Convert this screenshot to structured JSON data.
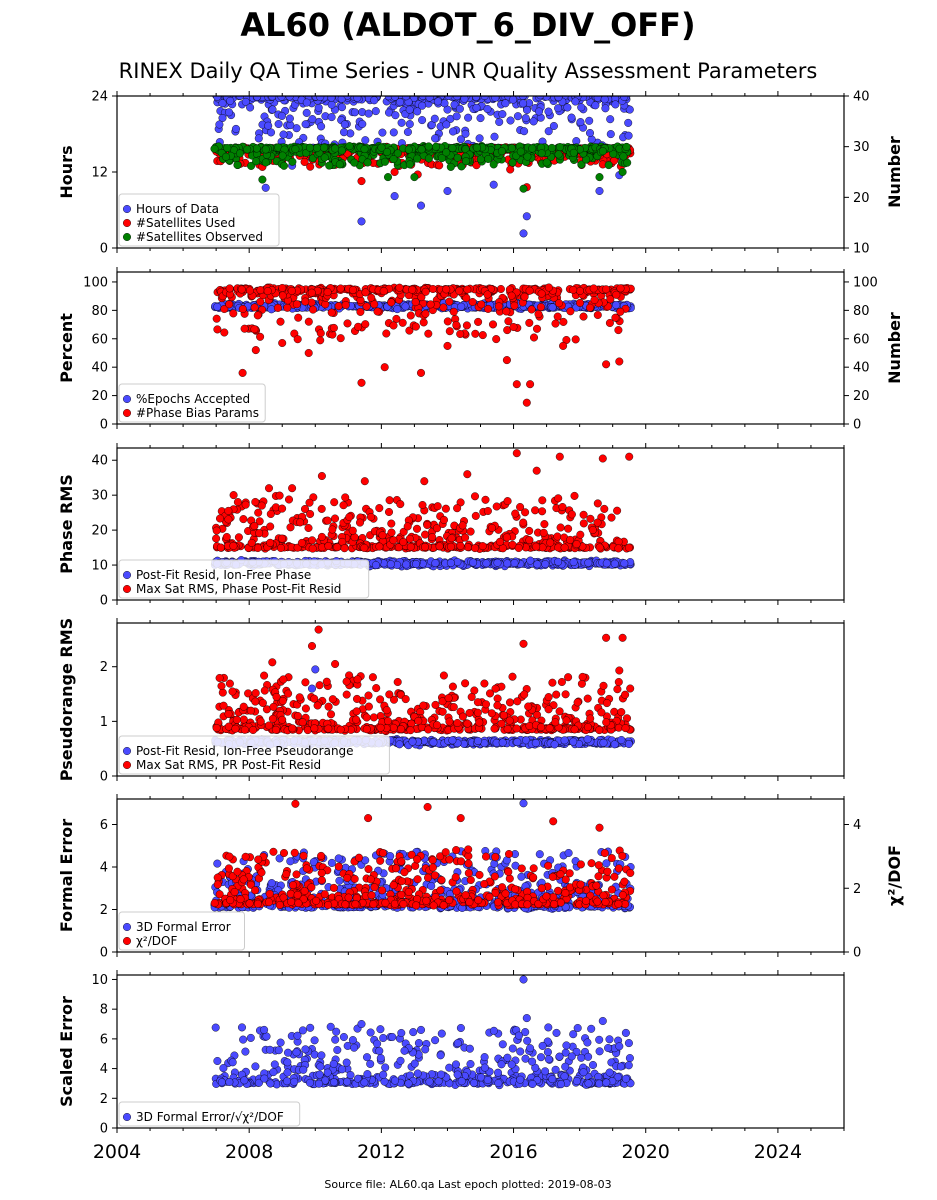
{
  "title": "AL60 (ALDOT_6_DIV_OFF)",
  "subtitle": "RINEX Daily QA Time Series - UNR Quality Assessment Parameters",
  "footer": "Source file: AL60.qa Last epoch plotted: 2019-08-03",
  "colors": {
    "blue": "#4a4aff",
    "red": "#ff0000",
    "green": "#008000"
  },
  "chart_data": [
    {
      "type": "scatter",
      "ylabel": "Hours",
      "ylabel_right": "Number",
      "xlim": [
        2004,
        2026
      ],
      "ylim": [
        0,
        24
      ],
      "ylim_right": [
        10,
        40
      ],
      "yticks": [
        "0",
        "12",
        "24"
      ],
      "yticks_right": [
        "10",
        "20",
        "30",
        "40"
      ],
      "legend_position": "lower-left",
      "series": [
        {
          "name": "Hours of Data",
          "color": "#4a4aff",
          "axis": "left",
          "typical": 23.9,
          "lowest": 2.3,
          "outliers": [
            [
              2007.1,
              19.5
            ],
            [
              2007.6,
              18.8
            ],
            [
              2008.5,
              9.5
            ],
            [
              2009.3,
              13.0
            ],
            [
              2010.0,
              15.0
            ],
            [
              2011.4,
              4.2
            ],
            [
              2012.4,
              8.2
            ],
            [
              2013.2,
              6.7
            ],
            [
              2014.0,
              9.0
            ],
            [
              2015.4,
              10.0
            ],
            [
              2016.3,
              2.3
            ],
            [
              2016.4,
              5.0
            ],
            [
              2017.2,
              14.0
            ],
            [
              2018.6,
              9.0
            ],
            [
              2019.2,
              11.5
            ]
          ]
        },
        {
          "name": "#Satellites Used",
          "color": "#ff0000",
          "axis": "right",
          "typical": 29.6,
          "lowest": 22.0,
          "outliers": [
            [
              2008.4,
              26.0
            ],
            [
              2011.4,
              23.2
            ],
            [
              2012.4,
              25.0
            ],
            [
              2013.1,
              24.5
            ],
            [
              2015.9,
              25.5
            ],
            [
              2016.4,
              22.0
            ],
            [
              2018.7,
              26.5
            ]
          ]
        },
        {
          "name": "#Satellites Observed",
          "color": "#008000",
          "axis": "right",
          "typical": 29.8,
          "lowest": 21.7,
          "outliers": [
            [
              2007.3,
              28.0
            ],
            [
              2008.4,
              23.5
            ],
            [
              2012.2,
              24.0
            ],
            [
              2013.0,
              24.0
            ],
            [
              2014.1,
              26.0
            ],
            [
              2015.4,
              26.5
            ],
            [
              2016.3,
              21.7
            ],
            [
              2018.6,
              24.0
            ],
            [
              2019.3,
              25.0
            ]
          ]
        }
      ]
    },
    {
      "type": "scatter",
      "ylabel": "Percent",
      "ylabel_right": "Number",
      "xlim": [
        2004,
        2026
      ],
      "ylim": [
        0,
        107
      ],
      "ylim_right": [
        0,
        107
      ],
      "yticks": [
        "0",
        "20",
        "40",
        "60",
        "80",
        "100"
      ],
      "yticks_right": [
        "0",
        "20",
        "40",
        "60",
        "80",
        "100"
      ],
      "legend_position": "lower-left",
      "series": [
        {
          "name": "%Epochs Accepted",
          "color": "#4a4aff",
          "axis": "left",
          "typical": 83,
          "lowest": 80,
          "outliers": []
        },
        {
          "name": "#Phase Bias Params",
          "color": "#ff0000",
          "axis": "right",
          "typical": 95,
          "lowest": 15,
          "outliers": [
            [
              2007.8,
              36
            ],
            [
              2008.2,
              52
            ],
            [
              2009.0,
              57
            ],
            [
              2009.8,
              50
            ],
            [
              2011.4,
              29
            ],
            [
              2012.1,
              40
            ],
            [
              2013.2,
              36
            ],
            [
              2014.0,
              55
            ],
            [
              2015.8,
              45
            ],
            [
              2016.1,
              28
            ],
            [
              2016.4,
              15
            ],
            [
              2016.5,
              28
            ],
            [
              2017.5,
              55
            ],
            [
              2018.8,
              42
            ],
            [
              2019.2,
              44
            ]
          ]
        }
      ]
    },
    {
      "type": "scatter",
      "ylabel": "Phase RMS",
      "xlim": [
        2004,
        2026
      ],
      "ylim": [
        0,
        43.5
      ],
      "yticks": [
        "0",
        "10",
        "20",
        "30",
        "40"
      ],
      "legend_position": "lower-left",
      "series": [
        {
          "name": "Post-Fit Resid, Ion-Free Phase",
          "color": "#4a4aff",
          "axis": "left",
          "typical": 10.5,
          "lowest": 9.5,
          "outliers": []
        },
        {
          "name": "Max Sat RMS, Phase Post-Fit Resid",
          "color": "#ff0000",
          "axis": "left",
          "typical": 15,
          "highest": 42,
          "outliers": [
            [
              2008.6,
              32
            ],
            [
              2009.3,
              32
            ],
            [
              2010.2,
              35.5
            ],
            [
              2011.5,
              34
            ],
            [
              2013.3,
              34
            ],
            [
              2014.6,
              36
            ],
            [
              2016.1,
              42
            ],
            [
              2016.7,
              37
            ],
            [
              2017.4,
              41
            ],
            [
              2018.7,
              40.5
            ],
            [
              2019.5,
              41
            ]
          ]
        }
      ]
    },
    {
      "type": "scatter",
      "ylabel": "Pseudorange RMS",
      "xlim": [
        2004,
        2026
      ],
      "ylim": [
        0,
        2.8
      ],
      "yticks": [
        "0",
        "1",
        "2"
      ],
      "legend_position": "lower-left",
      "series": [
        {
          "name": "Post-Fit Resid, Ion-Free Pseudorange",
          "color": "#4a4aff",
          "axis": "left",
          "typical": 0.62,
          "lowest": 0.35,
          "outliers": [
            [
              2009.9,
              1.6
            ],
            [
              2010.0,
              1.95
            ]
          ]
        },
        {
          "name": "Max Sat RMS, PR Post-Fit Resid",
          "color": "#ff0000",
          "axis": "left",
          "typical": 0.85,
          "highest": 2.68,
          "outliers": [
            [
              2008.7,
              2.08
            ],
            [
              2009.9,
              2.38
            ],
            [
              2010.1,
              2.68
            ],
            [
              2010.6,
              2.05
            ],
            [
              2016.3,
              2.42
            ],
            [
              2018.8,
              2.53
            ],
            [
              2019.3,
              2.53
            ],
            [
              2019.2,
              1.93
            ]
          ]
        }
      ]
    },
    {
      "type": "scatter",
      "ylabel": "Formal Error",
      "ylabel_right": "χ²/DOF",
      "xlim": [
        2004,
        2026
      ],
      "ylim": [
        0,
        7.2
      ],
      "ylim_right": [
        0,
        4.8
      ],
      "yticks": [
        "0",
        "2",
        "4",
        "6"
      ],
      "yticks_right": [
        "0",
        "2",
        "4"
      ],
      "legend_position": "lower-left",
      "series": [
        {
          "name": "3D Formal Error",
          "color": "#4a4aff",
          "axis": "left",
          "typical": 2.1,
          "highest": 7.0,
          "outliers": [
            [
              2016.3,
              7.0
            ],
            [
              2012.6,
              4.2
            ]
          ]
        },
        {
          "name": "χ²/DOF",
          "color": "#ff0000",
          "axis": "right",
          "typical": 1.5,
          "highest": 4.65,
          "outliers": [
            [
              2009.4,
              4.65
            ],
            [
              2011.6,
              4.2
            ],
            [
              2013.4,
              4.55
            ],
            [
              2014.4,
              4.2
            ],
            [
              2017.2,
              4.1
            ],
            [
              2018.6,
              3.9
            ]
          ]
        }
      ]
    },
    {
      "type": "scatter",
      "ylabel": "Scaled Error",
      "xlim": [
        2004,
        2026
      ],
      "ylim": [
        0,
        10.3
      ],
      "yticks": [
        "0",
        "2",
        "4",
        "6",
        "8",
        "10"
      ],
      "xticks": [
        "2004",
        "2008",
        "2012",
        "2016",
        "2020",
        "2024"
      ],
      "legend_position": "lower-left",
      "series": [
        {
          "name": "3D Formal Error/√χ²/DOF",
          "color": "#4a4aff",
          "axis": "left",
          "typical": 3.0,
          "highest": 10.0,
          "outliers": [
            [
              2011.4,
              7.0
            ],
            [
              2016.3,
              10.0
            ],
            [
              2016.4,
              7.4
            ],
            [
              2017.3,
              6.4
            ],
            [
              2018.7,
              7.2
            ],
            [
              2019.2,
              5.5
            ],
            [
              2019.4,
              6.4
            ],
            [
              2012.7,
              5.2
            ]
          ]
        }
      ]
    }
  ]
}
